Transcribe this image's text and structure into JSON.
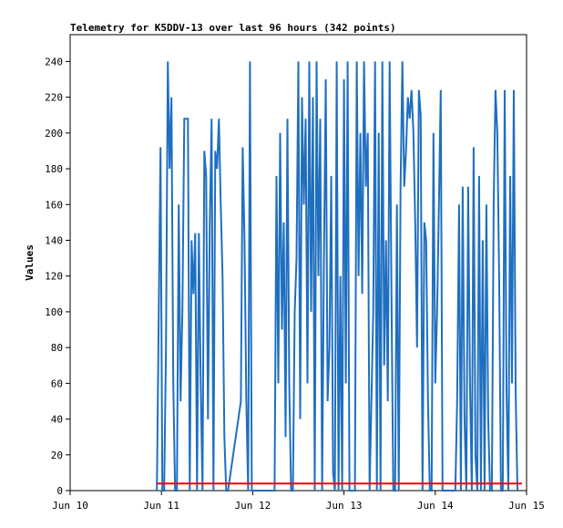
{
  "chart_data": {
    "type": "line",
    "title": "Telemetry for K5DDV-13 over last 96 hours (342 points)",
    "y_label": "Values",
    "xlim": [
      10,
      15
    ],
    "xticks": [
      {
        "value": 10,
        "label": "Jun 10"
      },
      {
        "value": 11,
        "label": "Jun 11"
      },
      {
        "value": 12,
        "label": "Jun 12"
      },
      {
        "value": 13,
        "label": "Jun 13"
      },
      {
        "value": 14,
        "label": "Jun 14"
      },
      {
        "value": 15,
        "label": "Jun 15"
      }
    ],
    "ylim": [
      0,
      255
    ],
    "yticks": [
      0,
      20,
      40,
      60,
      80,
      100,
      120,
      140,
      160,
      180,
      200,
      220,
      240
    ],
    "series": [
      {
        "color": "#1f6fc0",
        "x": [
          10.95,
          10.97,
          10.99,
          11.01,
          11.03,
          11.05,
          11.07,
          11.09,
          11.11,
          11.13,
          11.15,
          11.17,
          11.19,
          11.21,
          11.23,
          11.25,
          11.27,
          11.29,
          11.31,
          11.33,
          11.35,
          11.37,
          11.39,
          11.41,
          11.43,
          11.45,
          11.47,
          11.49,
          11.51,
          11.53,
          11.55,
          11.57,
          11.59,
          11.61,
          11.63,
          11.65,
          11.67,
          11.69,
          11.71,
          11.73,
          11.87,
          11.89,
          11.91,
          11.93,
          11.95,
          11.97,
          11.99,
          12.1,
          12.24,
          12.26,
          12.28,
          12.3,
          12.32,
          12.34,
          12.36,
          12.38,
          12.4,
          12.42,
          12.44,
          12.46,
          12.48,
          12.5,
          12.52,
          12.54,
          12.56,
          12.58,
          12.6,
          12.62,
          12.64,
          12.66,
          12.68,
          12.7,
          12.72,
          12.74,
          12.76,
          12.78,
          12.8,
          12.82,
          12.84,
          12.86,
          12.88,
          12.9,
          12.92,
          12.94,
          12.96,
          12.98,
          13,
          13.02,
          13.04,
          13.06,
          13.08,
          13.1,
          13.12,
          13.14,
          13.16,
          13.18,
          13.2,
          13.22,
          13.24,
          13.26,
          13.28,
          13.3,
          13.32,
          13.34,
          13.36,
          13.38,
          13.4,
          13.42,
          13.44,
          13.46,
          13.48,
          13.5,
          13.52,
          13.54,
          13.56,
          13.58,
          13.6,
          13.62,
          13.64,
          13.66,
          13.68,
          13.7,
          13.72,
          13.74,
          13.76,
          13.78,
          13.8,
          13.82,
          13.84,
          13.86,
          13.88,
          13.9,
          13.92,
          13.94,
          13.96,
          13.98,
          14,
          14.02,
          14.04,
          14.06,
          14.08,
          14.22,
          14.24,
          14.26,
          14.28,
          14.3,
          14.32,
          14.34,
          14.36,
          14.38,
          14.4,
          14.42,
          14.44,
          14.46,
          14.48,
          14.5,
          14.52,
          14.54,
          14.56,
          14.58,
          14.6,
          14.62,
          14.64,
          14.66,
          14.68,
          14.7,
          14.72,
          14.74,
          14.76,
          14.78,
          14.8,
          14.82,
          14.84,
          14.86,
          14.88,
          14.9
        ],
        "values": [
          0,
          96,
          192,
          0,
          0,
          80,
          240,
          180,
          220,
          60,
          0,
          0,
          160,
          50,
          100,
          208,
          208,
          208,
          0,
          140,
          110,
          144,
          0,
          144,
          60,
          0,
          190,
          176,
          40,
          150,
          208,
          0,
          190,
          180,
          208,
          160,
          120,
          30,
          0,
          0,
          50,
          192,
          140,
          50,
          0,
          240,
          0,
          0,
          0,
          176,
          60,
          200,
          90,
          150,
          30,
          208,
          60,
          0,
          0,
          100,
          130,
          240,
          40,
          220,
          160,
          208,
          60,
          240,
          100,
          220,
          0,
          240,
          120,
          208,
          0,
          130,
          230,
          50,
          80,
          176,
          10,
          0,
          240,
          0,
          120,
          0,
          230,
          60,
          240,
          0,
          0,
          0,
          0,
          240,
          120,
          200,
          110,
          240,
          170,
          200,
          0,
          50,
          100,
          240,
          0,
          200,
          0,
          240,
          70,
          140,
          50,
          240,
          110,
          0,
          0,
          160,
          0,
          170,
          240,
          170,
          190,
          220,
          208,
          224,
          200,
          150,
          80,
          224,
          210,
          0,
          150,
          140,
          50,
          0,
          0,
          200,
          60,
          100,
          160,
          224,
          0,
          0,
          50,
          160,
          0,
          170,
          40,
          0,
          170,
          60,
          0,
          192,
          20,
          0,
          176,
          0,
          140,
          0,
          160,
          40,
          0,
          0,
          160,
          224,
          200,
          120,
          0,
          0,
          224,
          56,
          0,
          176,
          60,
          224,
          56,
          0
        ]
      },
      {
        "color": "#ff0000",
        "x": [
          10.95,
          14.95
        ],
        "values": [
          4,
          4
        ]
      }
    ]
  }
}
